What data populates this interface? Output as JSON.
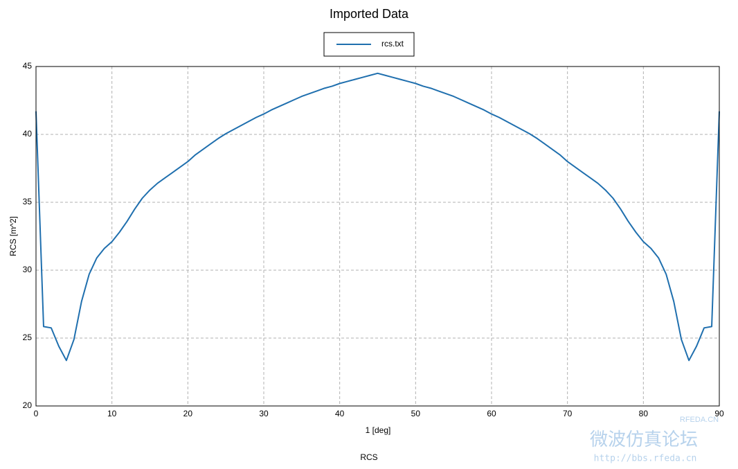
{
  "chart_data": {
    "type": "line",
    "title": "Imported Data",
    "subtitle": "RCS",
    "x_label": "1 [deg]",
    "y_label": "RCS [m^2]",
    "x": [
      0,
      1,
      2,
      3,
      4,
      5,
      6,
      7,
      8,
      9,
      10,
      11,
      12,
      13,
      14,
      15,
      16,
      17,
      18,
      19,
      20,
      21,
      22,
      23,
      24,
      25,
      26,
      27,
      28,
      29,
      30,
      31,
      32,
      33,
      34,
      35,
      36,
      37,
      38,
      39,
      40,
      41,
      42,
      43,
      44,
      45,
      46,
      47,
      48,
      49,
      50,
      51,
      52,
      53,
      54,
      55,
      56,
      57,
      58,
      59,
      60,
      61,
      62,
      63,
      64,
      65,
      66,
      67,
      68,
      69,
      70,
      71,
      72,
      73,
      74,
      75,
      76,
      77,
      78,
      79,
      80,
      81,
      82,
      83,
      84,
      85,
      86,
      87,
      88,
      89,
      90
    ],
    "series": [
      {
        "name": "rcs.txt",
        "color": "#1f6fae",
        "values": [
          41.7,
          25.85,
          25.75,
          24.4,
          23.35,
          24.9,
          27.7,
          29.7,
          30.9,
          31.6,
          32.1,
          32.8,
          33.6,
          34.5,
          35.3,
          35.9,
          36.4,
          36.8,
          37.2,
          37.6,
          38.0,
          38.5,
          38.9,
          39.3,
          39.7,
          40.05,
          40.35,
          40.65,
          40.95,
          41.25,
          41.5,
          41.8,
          42.05,
          42.3,
          42.55,
          42.8,
          43.0,
          43.2,
          43.4,
          43.55,
          43.75,
          43.9,
          44.05,
          44.2,
          44.35,
          44.5,
          44.35,
          44.2,
          44.05,
          43.9,
          43.75,
          43.55,
          43.4,
          43.2,
          43.0,
          42.8,
          42.55,
          42.3,
          42.05,
          41.8,
          41.5,
          41.25,
          40.95,
          40.65,
          40.35,
          40.05,
          39.7,
          39.3,
          38.9,
          38.5,
          38.0,
          37.6,
          37.2,
          36.8,
          36.4,
          35.9,
          35.3,
          34.5,
          33.6,
          32.8,
          32.1,
          31.6,
          30.9,
          29.7,
          27.7,
          24.9,
          23.35,
          24.4,
          25.75,
          25.85,
          41.7
        ]
      }
    ],
    "xlim": [
      0,
      90
    ],
    "xticks": [
      0,
      10,
      20,
      30,
      40,
      50,
      60,
      70,
      80,
      90
    ],
    "ylim": [
      20,
      45
    ],
    "yticks": [
      20,
      25,
      30,
      35,
      40,
      45
    ],
    "grid": true,
    "legend": "top",
    "watermark": [
      "RFEDA.CN",
      "微波仿真论坛",
      "http://bbs.rfeda.cn"
    ]
  }
}
